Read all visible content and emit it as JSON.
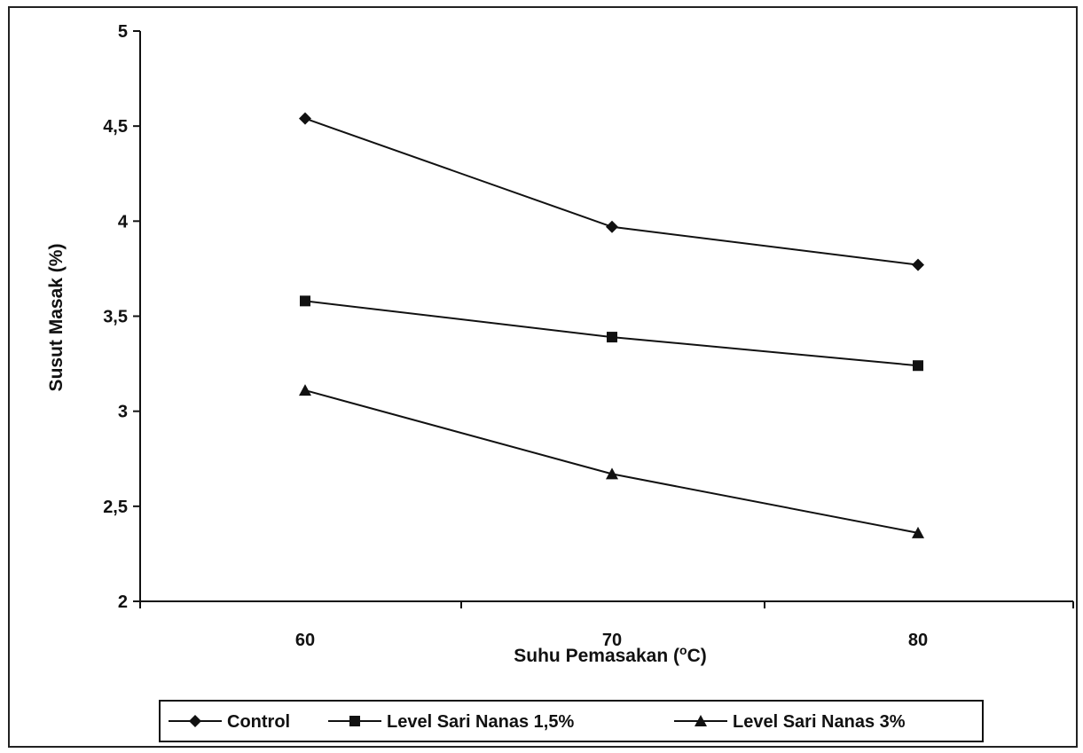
{
  "chart_data": {
    "type": "line",
    "title": "",
    "xlabel": "Suhu Pemasakan (°C)",
    "xlabel_parts": {
      "before": "Suhu Pemasakan (",
      "sup": "o",
      "after": "C)"
    },
    "ylabel": "Susut Masak (%)",
    "categories": [
      "60",
      "70",
      "80"
    ],
    "ylim": [
      2,
      5
    ],
    "yticks": [
      {
        "value": 2,
        "label": "2"
      },
      {
        "value": 2.5,
        "label": "2,5"
      },
      {
        "value": 3,
        "label": "3"
      },
      {
        "value": 3.5,
        "label": "3,5"
      },
      {
        "value": 4,
        "label": "4"
      },
      {
        "value": 4.5,
        "label": "4,5"
      },
      {
        "value": 5,
        "label": "5"
      }
    ],
    "grid": false,
    "legend_position": "bottom",
    "series": [
      {
        "name": "Control",
        "marker": "diamond",
        "values": [
          4.54,
          3.97,
          3.77
        ]
      },
      {
        "name": "Level Sari Nanas 1,5%",
        "marker": "square",
        "values": [
          3.58,
          3.39,
          3.24
        ]
      },
      {
        "name": "Level Sari Nanas 3%",
        "marker": "triangle",
        "values": [
          3.11,
          2.67,
          2.36
        ]
      }
    ],
    "colors": {
      "line": "#111111",
      "frame": "#222222",
      "background": "#ffffff"
    }
  }
}
